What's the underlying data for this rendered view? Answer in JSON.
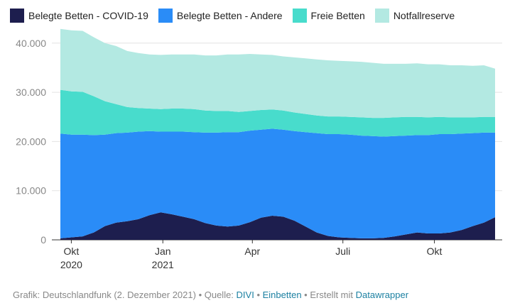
{
  "chart_data": {
    "type": "area",
    "stacked": true,
    "series": [
      {
        "name": "Belegte Betten - COVID-19",
        "color": "#1d1e4e",
        "values": [
          300,
          500,
          700,
          1500,
          2800,
          3500,
          3800,
          4200,
          5000,
          5600,
          5200,
          4700,
          4200,
          3400,
          2900,
          2700,
          2900,
          3600,
          4500,
          4900,
          4700,
          3900,
          2700,
          1500,
          800,
          500,
          400,
          300,
          300,
          400,
          700,
          1100,
          1500,
          1300,
          1300,
          1500,
          2000,
          2800,
          3500,
          4600
        ]
      },
      {
        "name": "Belegte Betten - Andere",
        "color": "#2a8cf7",
        "values": [
          21300,
          20900,
          20700,
          19800,
          18600,
          18200,
          18000,
          17800,
          17100,
          16400,
          16800,
          17300,
          17700,
          18400,
          18900,
          19200,
          19000,
          18600,
          17900,
          17700,
          17700,
          18200,
          19200,
          20200,
          20700,
          21000,
          21000,
          20900,
          20800,
          20600,
          20400,
          20100,
          19800,
          20000,
          20200,
          20000,
          19600,
          18900,
          18300,
          17200
        ]
      },
      {
        "name": "Freie Betten",
        "color": "#48dccc",
        "values": [
          8900,
          8800,
          8700,
          7900,
          6800,
          5900,
          5200,
          4800,
          4600,
          4600,
          4700,
          4700,
          4700,
          4500,
          4400,
          4300,
          4100,
          4000,
          4000,
          3900,
          3900,
          3800,
          3700,
          3600,
          3600,
          3600,
          3600,
          3700,
          3700,
          3800,
          3800,
          3800,
          3700,
          3600,
          3500,
          3400,
          3300,
          3200,
          3200,
          3200
        ]
      },
      {
        "name": "Notfallreserve",
        "color": "#b3e9e2",
        "values": [
          12400,
          12400,
          12400,
          12000,
          11800,
          11800,
          11400,
          11200,
          11000,
          11000,
          11000,
          11000,
          11100,
          11200,
          11300,
          11500,
          11700,
          11600,
          11300,
          11100,
          11000,
          11200,
          11300,
          11400,
          11400,
          11300,
          11300,
          11300,
          11200,
          11000,
          10900,
          10800,
          10900,
          10800,
          10700,
          10600,
          10600,
          10500,
          10500,
          9800
        ]
      }
    ],
    "x_axis": {
      "start": "2020-09-20",
      "end": "2021-12-01",
      "ticks": [
        {
          "date": "2020-10-01",
          "label": "Okt",
          "sublabel": "2020"
        },
        {
          "date": "2021-01-01",
          "label": "Jan",
          "sublabel": "2021"
        },
        {
          "date": "2021-04-01",
          "label": "Apr",
          "sublabel": ""
        },
        {
          "date": "2021-07-01",
          "label": "Juli",
          "sublabel": ""
        },
        {
          "date": "2021-10-01",
          "label": "Okt",
          "sublabel": ""
        }
      ]
    },
    "y_axis": {
      "min": 0,
      "max": 43000,
      "ticks": [
        {
          "value": 0,
          "label": "0"
        },
        {
          "value": 10000,
          "label": "10.000"
        },
        {
          "value": 20000,
          "label": "20.000"
        },
        {
          "value": 30000,
          "label": "30.000"
        },
        {
          "value": 40000,
          "label": "40.000"
        }
      ]
    },
    "grid": true,
    "legend_position": "top-left"
  },
  "footer": {
    "prefix": "Grafik: Deutschlandfunk (2. Dezember 2021) • Quelle: ",
    "source_link": "DIVI",
    "sep": " • ",
    "link2": "Einbetten",
    "middle": " • Erstellt mit ",
    "link3": "Datawrapper"
  }
}
